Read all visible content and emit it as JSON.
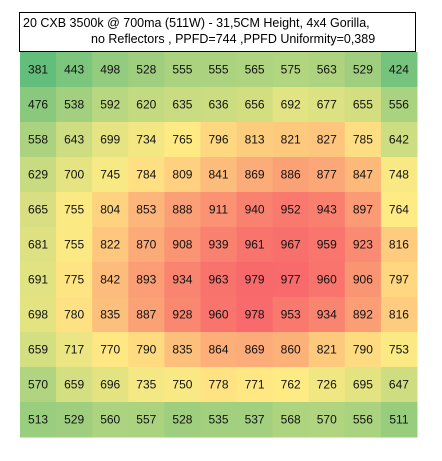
{
  "chart_data": {
    "type": "heatmap",
    "title_line1": "20 CXB 3500k @ 700ma (511W) - 31,5CM Height, 4x4 Gorilla,",
    "title_line2": "no Reflectors , PPFD=744 ,PPFD Uniformity=0,389",
    "rows": [
      [
        381,
        443,
        498,
        528,
        555,
        555,
        565,
        575,
        563,
        529,
        424
      ],
      [
        476,
        538,
        592,
        620,
        635,
        636,
        656,
        692,
        677,
        655,
        556
      ],
      [
        558,
        643,
        699,
        734,
        765,
        796,
        813,
        821,
        827,
        785,
        642
      ],
      [
        629,
        700,
        745,
        784,
        809,
        841,
        869,
        886,
        877,
        847,
        748
      ],
      [
        665,
        755,
        804,
        853,
        888,
        911,
        940,
        952,
        943,
        897,
        764
      ],
      [
        681,
        755,
        822,
        870,
        908,
        939,
        961,
        967,
        959,
        923,
        816
      ],
      [
        691,
        775,
        842,
        893,
        934,
        963,
        979,
        977,
        960,
        906,
        797
      ],
      [
        698,
        780,
        835,
        887,
        928,
        960,
        978,
        953,
        934,
        892,
        816
      ],
      [
        659,
        717,
        770,
        790,
        835,
        864,
        869,
        860,
        821,
        790,
        753
      ],
      [
        570,
        659,
        696,
        735,
        750,
        778,
        771,
        762,
        726,
        695,
        647
      ],
      [
        513,
        529,
        560,
        557,
        528,
        535,
        537,
        568,
        570,
        556,
        511
      ]
    ],
    "color_scale": {
      "low": "#63be7b",
      "mid": "#ffeb84",
      "high": "#f8696b"
    }
  }
}
